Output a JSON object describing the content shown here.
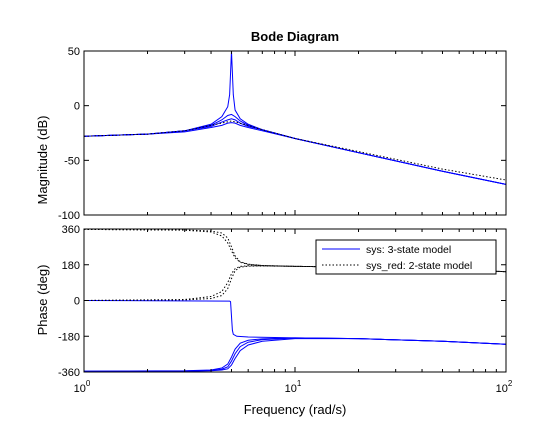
{
  "chart_data": {
    "type": "line",
    "title": "Bode Diagram",
    "xlabel": "Frequency  (rad/s)",
    "x_scale": "log",
    "xlim": [
      1,
      100
    ],
    "x_tick_labels": [
      "10^0",
      "10^1",
      "10^2"
    ],
    "colors": {
      "sys": "#0000ff",
      "sys_red": "#000000",
      "axes": "#000000"
    },
    "legend": {
      "location": "top-right of phase plot",
      "entries": [
        {
          "label": "sys: 3-state model",
          "color": "#0000ff",
          "style": "solid"
        },
        {
          "label": "sys_red: 2-state model",
          "color": "#000000",
          "style": "dotted"
        }
      ]
    },
    "magnitude": {
      "ylabel": "Magnitude (dB)",
      "ylim": [
        -100,
        50
      ],
      "yticks": [
        -100,
        -50,
        0,
        50
      ],
      "series": [
        {
          "name": "sys",
          "style": "solid",
          "curves": [
            {
              "x": [
                1,
                2,
                3,
                4,
                4.5,
                4.8,
                4.9,
                4.95,
                5,
                5.05,
                5.1,
                5.2,
                5.5,
                6,
                7,
                10,
                20,
                50,
                100
              ],
              "y": [
                -28,
                -26,
                -23,
                -17,
                -10,
                -1,
                10,
                30,
                50,
                30,
                10,
                -4,
                -12,
                -17,
                -22,
                -30,
                -43,
                -60,
                -72
              ]
            },
            {
              "x": [
                1,
                2,
                3,
                4,
                4.5,
                4.8,
                5,
                5.2,
                5.5,
                6,
                7,
                10,
                20,
                50,
                100
              ],
              "y": [
                -28,
                -26,
                -23,
                -18,
                -13,
                -9,
                -8,
                -10,
                -14,
                -18,
                -22,
                -30,
                -43,
                -60,
                -72
              ]
            },
            {
              "x": [
                1,
                2,
                3,
                4,
                4.5,
                4.8,
                5,
                5.2,
                5.5,
                6,
                7,
                10,
                20,
                50,
                100
              ],
              "y": [
                -28,
                -26,
                -23,
                -19,
                -15,
                -13,
                -12,
                -13,
                -16,
                -19,
                -22,
                -30,
                -43,
                -60,
                -72
              ]
            },
            {
              "x": [
                1,
                2,
                3,
                4,
                4.5,
                4.8,
                5,
                5.2,
                5.5,
                6,
                7,
                10,
                20,
                50,
                100
              ],
              "y": [
                -28,
                -26,
                -24,
                -20,
                -18,
                -16,
                -15.5,
                -16,
                -18,
                -20,
                -23,
                -30,
                -43,
                -60,
                -72
              ]
            }
          ]
        },
        {
          "name": "sys_red",
          "style": "dotted",
          "curves": [
            {
              "x": [
                1,
                2,
                3,
                4,
                5,
                6,
                7,
                10,
                20,
                50,
                100
              ],
              "y": [
                -28,
                -26,
                -23,
                -18,
                -14,
                -18,
                -22,
                -30,
                -42,
                -58,
                -68
              ]
            }
          ]
        }
      ]
    },
    "phase": {
      "ylabel": "Phase (deg)",
      "ylim": [
        -360,
        360
      ],
      "yticks": [
        -360,
        -180,
        0,
        180,
        360
      ],
      "series": [
        {
          "name": "sys",
          "style": "solid",
          "curves": [
            {
              "x": [
                1,
                4.9,
                4.95,
                5.05,
                5.1,
                5.3,
                6,
                8,
                10,
                20,
                50,
                100
              ],
              "y": [
                0,
                -3,
                -6,
                -150,
                -170,
                -180,
                -184,
                -186,
                -188,
                -192,
                -205,
                -220
              ]
            },
            {
              "x": [
                1,
                3,
                4,
                4.5,
                4.8,
                5,
                5.2,
                5.5,
                6,
                7,
                10,
                20,
                50,
                100
              ],
              "y": [
                -356,
                -354,
                -350,
                -340,
                -320,
                -285,
                -245,
                -215,
                -200,
                -193,
                -188,
                -192,
                -205,
                -220
              ]
            },
            {
              "x": [
                1,
                3,
                4,
                4.5,
                4.8,
                5,
                5.2,
                5.5,
                6,
                7,
                10,
                20,
                50,
                100
              ],
              "y": [
                -356,
                -355,
                -352,
                -346,
                -334,
                -305,
                -268,
                -232,
                -210,
                -197,
                -189,
                -192,
                -205,
                -220
              ]
            },
            {
              "x": [
                1,
                3,
                4,
                4.5,
                4.8,
                5,
                5.2,
                5.5,
                6,
                7,
                10,
                20,
                50,
                100
              ],
              "y": [
                -356,
                -356,
                -354,
                -350,
                -344,
                -325,
                -292,
                -252,
                -224,
                -205,
                -192,
                -192,
                -205,
                -220
              ]
            }
          ]
        },
        {
          "name": "sys_red",
          "style": "dotted",
          "curves": [
            {
              "x": [
                1,
                3,
                4,
                4.5,
                4.8,
                5,
                5.2,
                5.5,
                6,
                7,
                10,
                20,
                50,
                100
              ],
              "y": [
                358,
                354,
                345,
                325,
                290,
                250,
                215,
                192,
                182,
                176,
                172,
                168,
                158,
                145
              ]
            },
            {
              "x": [
                1,
                3,
                4,
                4.5,
                4.8,
                5,
                5.2,
                5.5,
                6,
                7,
                10,
                20,
                50,
                100
              ],
              "y": [
                358,
                355,
                350,
                340,
                315,
                270,
                225,
                195,
                183,
                176,
                172,
                168,
                158,
                145
              ]
            },
            {
              "x": [
                1,
                3,
                4,
                4.5,
                4.8,
                5,
                5.2,
                5.5,
                6,
                7,
                10,
                20,
                50,
                100
              ],
              "y": [
                0,
                3,
                10,
                25,
                60,
                110,
                150,
                168,
                173,
                174,
                172,
                168,
                158,
                145
              ]
            },
            {
              "x": [
                1,
                3,
                4,
                4.5,
                4.8,
                5,
                5.2,
                5.5,
                6,
                7,
                10,
                20,
                50,
                100
              ],
              "y": [
                0,
                5,
                20,
                45,
                90,
                135,
                160,
                172,
                175,
                175,
                172,
                168,
                158,
                145
              ]
            }
          ]
        }
      ]
    }
  }
}
